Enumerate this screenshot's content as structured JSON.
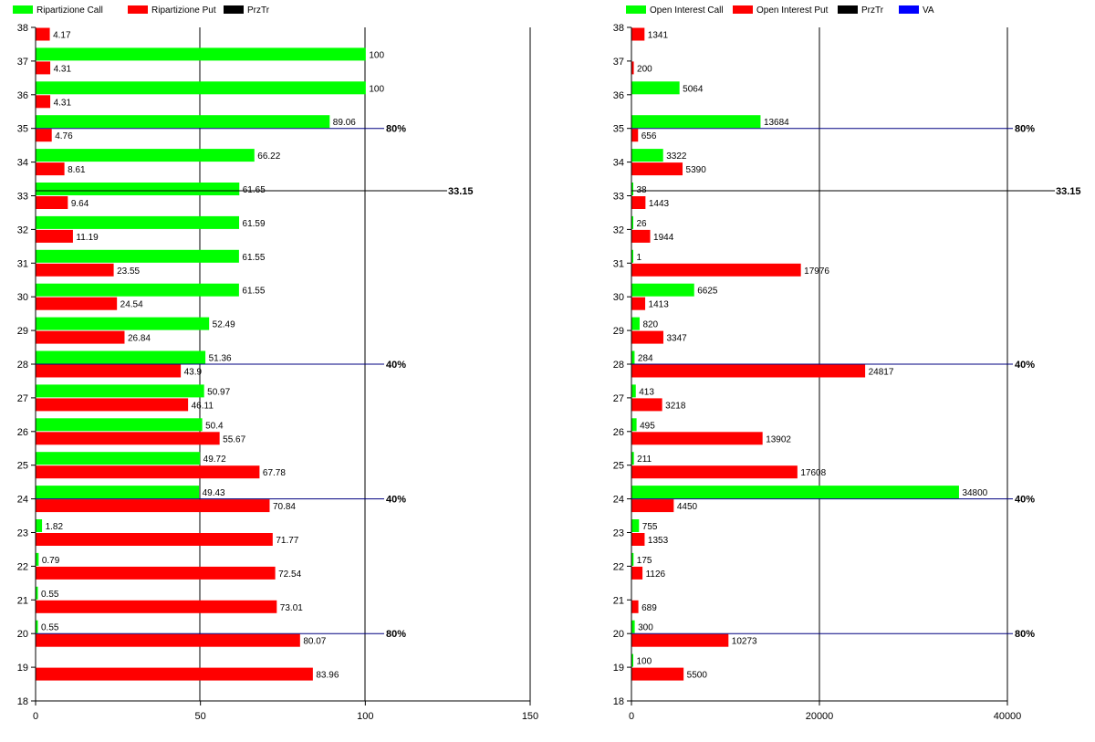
{
  "colors": {
    "call": "#00ff00",
    "put": "#ff0000",
    "przTr": "#000000",
    "va": "#0000ff",
    "refLine": "#000080"
  },
  "chart_data": [
    {
      "type": "bar",
      "orientation": "horizontal",
      "legend": [
        "Ripartizione Call",
        "Ripartizione Put",
        "PrzTr"
      ],
      "legend_placement": "top-left",
      "y_ticks": [
        "18",
        "19",
        "20",
        "21",
        "22",
        "23",
        "24",
        "25",
        "26",
        "27",
        "28",
        "29",
        "30",
        "31",
        "32",
        "33",
        "34",
        "35",
        "36",
        "37",
        "38"
      ],
      "x_ticks": [
        "0",
        "50",
        "100",
        "150"
      ],
      "xlim": [
        0,
        150
      ],
      "ylim": [
        18,
        38
      ],
      "series": [
        {
          "name": "Ripartizione Call",
          "points": [
            {
              "y": 19,
              "v": null
            },
            {
              "y": 20,
              "v": 0.55,
              "label": "0.55"
            },
            {
              "y": 21,
              "v": 0.55,
              "label": "0.55"
            },
            {
              "y": 22,
              "v": 0.79,
              "label": "0.79"
            },
            {
              "y": 23,
              "v": 1.82,
              "label": "1.82"
            },
            {
              "y": 24,
              "v": 49.43,
              "label": "49.43"
            },
            {
              "y": 25,
              "v": 49.72,
              "label": "49.72"
            },
            {
              "y": 26,
              "v": 50.4,
              "label": "50.4"
            },
            {
              "y": 27,
              "v": 50.97,
              "label": "50.97"
            },
            {
              "y": 28,
              "v": 51.36,
              "label": "51.36"
            },
            {
              "y": 29,
              "v": 52.49,
              "label": "52.49"
            },
            {
              "y": 30,
              "v": 61.55,
              "label": "61.55"
            },
            {
              "y": 31,
              "v": 61.55,
              "label": "61.55"
            },
            {
              "y": 32,
              "v": 61.59,
              "label": "61.59"
            },
            {
              "y": 33,
              "v": 61.65,
              "label": "61.65"
            },
            {
              "y": 34,
              "v": 66.22,
              "label": "66.22"
            },
            {
              "y": 35,
              "v": 89.06,
              "label": "89.06"
            },
            {
              "y": 36,
              "v": 100,
              "label": "100"
            },
            {
              "y": 37,
              "v": 100,
              "label": "100"
            },
            {
              "y": 38,
              "v": null
            }
          ]
        },
        {
          "name": "Ripartizione Put",
          "points": [
            {
              "y": 19,
              "v": 83.96,
              "label": "83.96"
            },
            {
              "y": 20,
              "v": 80.07,
              "label": "80.07"
            },
            {
              "y": 21,
              "v": 73.01,
              "label": "73.01"
            },
            {
              "y": 22,
              "v": 72.54,
              "label": "72.54"
            },
            {
              "y": 23,
              "v": 71.77,
              "label": "71.77"
            },
            {
              "y": 24,
              "v": 70.84,
              "label": "70.84"
            },
            {
              "y": 25,
              "v": 67.78,
              "label": "67.78"
            },
            {
              "y": 26,
              "v": 55.67,
              "label": "55.67"
            },
            {
              "y": 27,
              "v": 46.11,
              "label": "46.11"
            },
            {
              "y": 28,
              "v": 43.9,
              "label": "43.9"
            },
            {
              "y": 29,
              "v": 26.84,
              "label": "26.84"
            },
            {
              "y": 30,
              "v": 24.54,
              "label": "24.54"
            },
            {
              "y": 31,
              "v": 23.55,
              "label": "23.55"
            },
            {
              "y": 32,
              "v": 11.19,
              "label": "11.19"
            },
            {
              "y": 33,
              "v": 9.64,
              "label": "9.64"
            },
            {
              "y": 34,
              "v": 8.61,
              "label": "8.61"
            },
            {
              "y": 35,
              "v": 4.76,
              "label": "4.76"
            },
            {
              "y": 36,
              "v": 4.31,
              "label": "4.31"
            },
            {
              "y": 37,
              "v": 4.31,
              "label": "4.31"
            },
            {
              "y": 38,
              "v": 4.17,
              "label": "4.17"
            }
          ]
        }
      ],
      "przTr": {
        "y": 33.15,
        "label": "33.15"
      },
      "ref_lines": [
        {
          "y": 35,
          "label": "80%"
        },
        {
          "y": 28,
          "label": "40%"
        },
        {
          "y": 24,
          "label": "40%"
        },
        {
          "y": 20,
          "label": "80%"
        }
      ]
    },
    {
      "type": "bar",
      "orientation": "horizontal",
      "legend": [
        "Open Interest Call",
        "Open Interest Put",
        "PrzTr",
        "VA"
      ],
      "legend_placement": "top-left",
      "y_ticks": [
        "18",
        "19",
        "20",
        "21",
        "22",
        "23",
        "24",
        "25",
        "26",
        "27",
        "28",
        "29",
        "30",
        "31",
        "32",
        "33",
        "34",
        "35",
        "36",
        "37",
        "38"
      ],
      "x_ticks": [
        "0",
        "20000",
        "40000"
      ],
      "xlim": [
        0,
        40000
      ],
      "ylim": [
        18,
        38
      ],
      "series": [
        {
          "name": "Open Interest Call",
          "points": [
            {
              "y": 19,
              "v": 100,
              "label": "100"
            },
            {
              "y": 20,
              "v": 300,
              "label": "300"
            },
            {
              "y": 21,
              "v": null
            },
            {
              "y": 22,
              "v": 175,
              "label": "175"
            },
            {
              "y": 23,
              "v": 755,
              "label": "755"
            },
            {
              "y": 24,
              "v": 34800,
              "label": "34800"
            },
            {
              "y": 25,
              "v": 211,
              "label": "211"
            },
            {
              "y": 26,
              "v": 495,
              "label": "495"
            },
            {
              "y": 27,
              "v": 413,
              "label": "413"
            },
            {
              "y": 28,
              "v": 284,
              "label": "284"
            },
            {
              "y": 29,
              "v": 820,
              "label": "820"
            },
            {
              "y": 30,
              "v": 6625,
              "label": "6625"
            },
            {
              "y": 31,
              "v": 1,
              "label": "1"
            },
            {
              "y": 32,
              "v": 26,
              "label": "26"
            },
            {
              "y": 33,
              "v": 38,
              "label": "38"
            },
            {
              "y": 34,
              "v": 3322,
              "label": "3322"
            },
            {
              "y": 35,
              "v": 13684,
              "label": "13684"
            },
            {
              "y": 36,
              "v": 5064,
              "label": "5064"
            },
            {
              "y": 37,
              "v": null
            },
            {
              "y": 38,
              "v": null
            }
          ]
        },
        {
          "name": "Open Interest Put",
          "points": [
            {
              "y": 19,
              "v": 5500,
              "label": "5500"
            },
            {
              "y": 20,
              "v": 10273,
              "label": "10273"
            },
            {
              "y": 21,
              "v": 689,
              "label": "689"
            },
            {
              "y": 22,
              "v": 1126,
              "label": "1126"
            },
            {
              "y": 23,
              "v": 1353,
              "label": "1353"
            },
            {
              "y": 24,
              "v": 4450,
              "label": "4450"
            },
            {
              "y": 25,
              "v": 17608,
              "label": "17608"
            },
            {
              "y": 26,
              "v": 13902,
              "label": "13902"
            },
            {
              "y": 27,
              "v": 3218,
              "label": "3218"
            },
            {
              "y": 28,
              "v": 24817,
              "label": "24817"
            },
            {
              "y": 29,
              "v": 3347,
              "label": "3347"
            },
            {
              "y": 30,
              "v": 1413,
              "label": "1413"
            },
            {
              "y": 31,
              "v": 17976,
              "label": "17976"
            },
            {
              "y": 32,
              "v": 1944,
              "label": "1944"
            },
            {
              "y": 33,
              "v": 1443,
              "label": "1443"
            },
            {
              "y": 34,
              "v": 5390,
              "label": "5390"
            },
            {
              "y": 35,
              "v": 656,
              "label": "656"
            },
            {
              "y": 36,
              "v": null
            },
            {
              "y": 37,
              "v": 200,
              "label": "200"
            },
            {
              "y": 38,
              "v": 1341,
              "label": "1341"
            }
          ]
        }
      ],
      "przTr": {
        "y": 33.15,
        "label": "33.15"
      },
      "ref_lines": [
        {
          "y": 35,
          "label": "80%"
        },
        {
          "y": 28,
          "label": "40%"
        },
        {
          "y": 24,
          "label": "40%"
        },
        {
          "y": 20,
          "label": "80%"
        }
      ]
    }
  ]
}
